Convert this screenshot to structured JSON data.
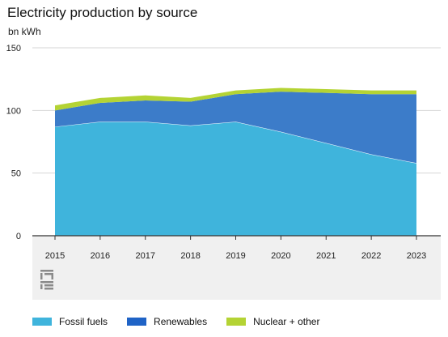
{
  "chart_data": {
    "type": "area",
    "title": "Electricity production by source",
    "ylabel": "bn kWh",
    "ylim": [
      0,
      150
    ],
    "yticks": [
      "150",
      "100",
      "50",
      "0"
    ],
    "ytick_values": [
      150,
      100,
      50,
      0
    ],
    "categories": [
      "2015",
      "2016",
      "2017",
      "2018",
      "2019",
      "2020",
      "2021",
      "2022",
      "2023"
    ],
    "stacked": true,
    "grid": true,
    "legend_position": "bottom",
    "series": [
      {
        "name": "Fossil fuels",
        "color": "#3fb4dc",
        "values": [
          87,
          91,
          91,
          88,
          91,
          83,
          74,
          65,
          58
        ]
      },
      {
        "name": "Renewables",
        "color": "#3c7cc9",
        "values": [
          13,
          15,
          17,
          19,
          22,
          32,
          40,
          48,
          55
        ]
      },
      {
        "name": "Nuclear + other",
        "color": "#b4d334",
        "values": [
          4,
          4,
          4,
          3,
          3,
          3,
          3,
          3,
          3
        ]
      }
    ]
  },
  "legend": {
    "items": [
      {
        "label": "Fossil fuels",
        "color": "#3fb4dc"
      },
      {
        "label": "Renewables",
        "color": "#1f63c6"
      },
      {
        "label": "Nuclear + other",
        "color": "#b4d334"
      }
    ]
  },
  "logo": {
    "icon": "cbs-logo-icon"
  }
}
